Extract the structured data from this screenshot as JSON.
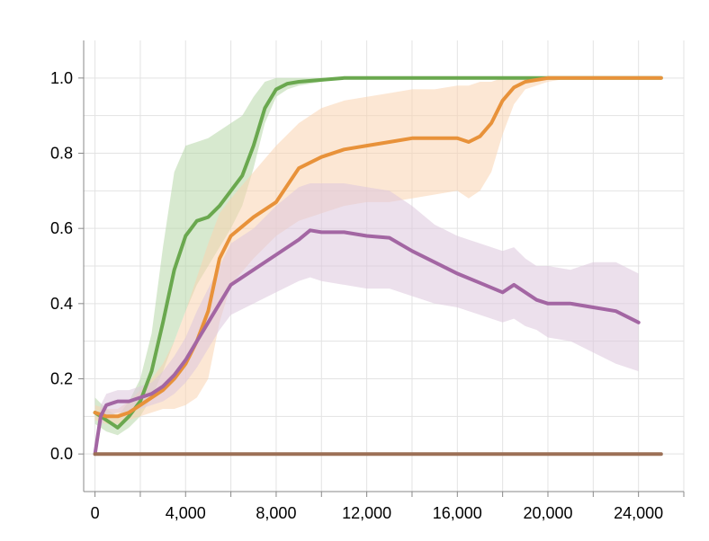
{
  "chart_data": {
    "type": "line",
    "title": "",
    "xlabel": "",
    "ylabel": "",
    "xlim": [
      -500,
      26000
    ],
    "ylim": [
      -0.1,
      1.1
    ],
    "x_ticks": [
      0,
      4000,
      8000,
      12000,
      16000,
      20000,
      24000
    ],
    "x_tick_labels": [
      "0",
      "4,000",
      "8,000",
      "12,000",
      "16,000",
      "20,000",
      "24,000"
    ],
    "y_ticks": [
      0.0,
      0.2,
      0.4,
      0.6,
      0.8,
      1.0
    ],
    "y_tick_labels": [
      "0.0",
      "0.2",
      "0.4",
      "0.6",
      "0.8",
      "1.0"
    ],
    "grid": true,
    "legend": "none",
    "series": [
      {
        "color": "#6aa84f",
        "band_color": "#b6d7a8",
        "x": [
          0,
          500,
          1000,
          1500,
          2000,
          2500,
          3000,
          3500,
          4000,
          4500,
          5000,
          5500,
          6000,
          6500,
          7000,
          7500,
          8000,
          8500,
          9000,
          10000,
          11000,
          12000,
          14000,
          16000,
          18000,
          20000,
          22000,
          25000
        ],
        "y": [
          0.11,
          0.09,
          0.07,
          0.1,
          0.14,
          0.22,
          0.35,
          0.49,
          0.58,
          0.62,
          0.63,
          0.66,
          0.7,
          0.74,
          0.82,
          0.92,
          0.97,
          0.985,
          0.99,
          0.995,
          1.0,
          1.0,
          1.0,
          1.0,
          1.0,
          1.0,
          1.0,
          1.0
        ],
        "lower": [
          0.08,
          0.06,
          0.05,
          0.07,
          0.1,
          0.15,
          0.22,
          0.3,
          0.38,
          0.45,
          0.5,
          0.55,
          0.6,
          0.66,
          0.76,
          0.88,
          0.95,
          0.97,
          0.98,
          0.99,
          1.0,
          1.0,
          1.0,
          1.0,
          1.0,
          1.0,
          1.0,
          1.0
        ],
        "upper": [
          0.15,
          0.12,
          0.1,
          0.14,
          0.2,
          0.32,
          0.55,
          0.75,
          0.82,
          0.83,
          0.84,
          0.86,
          0.88,
          0.9,
          0.95,
          0.99,
          1.0,
          1.0,
          1.0,
          1.0,
          1.0,
          1.0,
          1.0,
          1.0,
          1.0,
          1.0,
          1.0,
          1.0
        ]
      },
      {
        "color": "#e8923a",
        "band_color": "#f9d4b0",
        "x": [
          0,
          500,
          1000,
          1500,
          2000,
          2500,
          3000,
          3500,
          4000,
          4500,
          5000,
          5500,
          6000,
          7000,
          8000,
          9000,
          10000,
          11000,
          12000,
          13000,
          14000,
          15000,
          16000,
          16500,
          17000,
          17500,
          18000,
          18500,
          19000,
          20000,
          21000,
          22000,
          25000
        ],
        "y": [
          0.11,
          0.1,
          0.1,
          0.11,
          0.13,
          0.15,
          0.17,
          0.2,
          0.24,
          0.3,
          0.38,
          0.52,
          0.58,
          0.63,
          0.67,
          0.76,
          0.79,
          0.81,
          0.82,
          0.83,
          0.84,
          0.84,
          0.84,
          0.83,
          0.845,
          0.88,
          0.94,
          0.975,
          0.99,
          1.0,
          1.0,
          1.0,
          1.0
        ],
        "lower": [
          0.09,
          0.08,
          0.08,
          0.09,
          0.1,
          0.11,
          0.12,
          0.12,
          0.13,
          0.15,
          0.2,
          0.35,
          0.45,
          0.52,
          0.58,
          0.62,
          0.64,
          0.66,
          0.67,
          0.67,
          0.68,
          0.69,
          0.7,
          0.68,
          0.7,
          0.75,
          0.85,
          0.93,
          0.97,
          0.99,
          1.0,
          1.0,
          1.0
        ],
        "upper": [
          0.13,
          0.12,
          0.12,
          0.14,
          0.17,
          0.2,
          0.24,
          0.3,
          0.38,
          0.47,
          0.56,
          0.64,
          0.68,
          0.75,
          0.82,
          0.88,
          0.92,
          0.94,
          0.95,
          0.96,
          0.97,
          0.97,
          0.98,
          0.98,
          0.99,
          0.99,
          1.0,
          1.0,
          1.0,
          1.0,
          1.0,
          1.0,
          1.0
        ]
      },
      {
        "color": "#a366a3",
        "band_color": "#dcc6dc",
        "x": [
          0,
          250,
          500,
          1000,
          1500,
          2000,
          2500,
          3000,
          3500,
          4000,
          4500,
          5000,
          5500,
          6000,
          7000,
          8000,
          9000,
          9500,
          10000,
          11000,
          12000,
          13000,
          14000,
          15000,
          16000,
          17000,
          18000,
          18500,
          19000,
          19500,
          20000,
          21000,
          22000,
          23000,
          24000
        ],
        "y": [
          0.0,
          0.1,
          0.13,
          0.14,
          0.14,
          0.15,
          0.16,
          0.18,
          0.21,
          0.25,
          0.3,
          0.35,
          0.4,
          0.45,
          0.49,
          0.53,
          0.57,
          0.595,
          0.59,
          0.59,
          0.58,
          0.575,
          0.54,
          0.51,
          0.48,
          0.455,
          0.43,
          0.45,
          0.43,
          0.41,
          0.4,
          0.4,
          0.39,
          0.38,
          0.35
        ],
        "lower": [
          0.0,
          0.07,
          0.1,
          0.11,
          0.11,
          0.12,
          0.13,
          0.14,
          0.16,
          0.19,
          0.23,
          0.28,
          0.33,
          0.37,
          0.4,
          0.43,
          0.46,
          0.47,
          0.46,
          0.45,
          0.44,
          0.44,
          0.42,
          0.4,
          0.39,
          0.37,
          0.35,
          0.36,
          0.34,
          0.33,
          0.31,
          0.3,
          0.27,
          0.24,
          0.22
        ],
        "upper": [
          0.0,
          0.13,
          0.16,
          0.17,
          0.17,
          0.18,
          0.19,
          0.22,
          0.26,
          0.31,
          0.38,
          0.44,
          0.5,
          0.56,
          0.6,
          0.66,
          0.71,
          0.72,
          0.72,
          0.72,
          0.71,
          0.7,
          0.66,
          0.61,
          0.58,
          0.56,
          0.54,
          0.55,
          0.52,
          0.5,
          0.5,
          0.49,
          0.51,
          0.51,
          0.48
        ]
      },
      {
        "color": "#9c7056",
        "band_color": "#d8c2b5",
        "x": [
          0,
          25000
        ],
        "y": [
          0.0,
          0.0
        ],
        "lower": [
          0.0,
          0.0
        ],
        "upper": [
          0.0,
          0.0
        ]
      }
    ]
  }
}
